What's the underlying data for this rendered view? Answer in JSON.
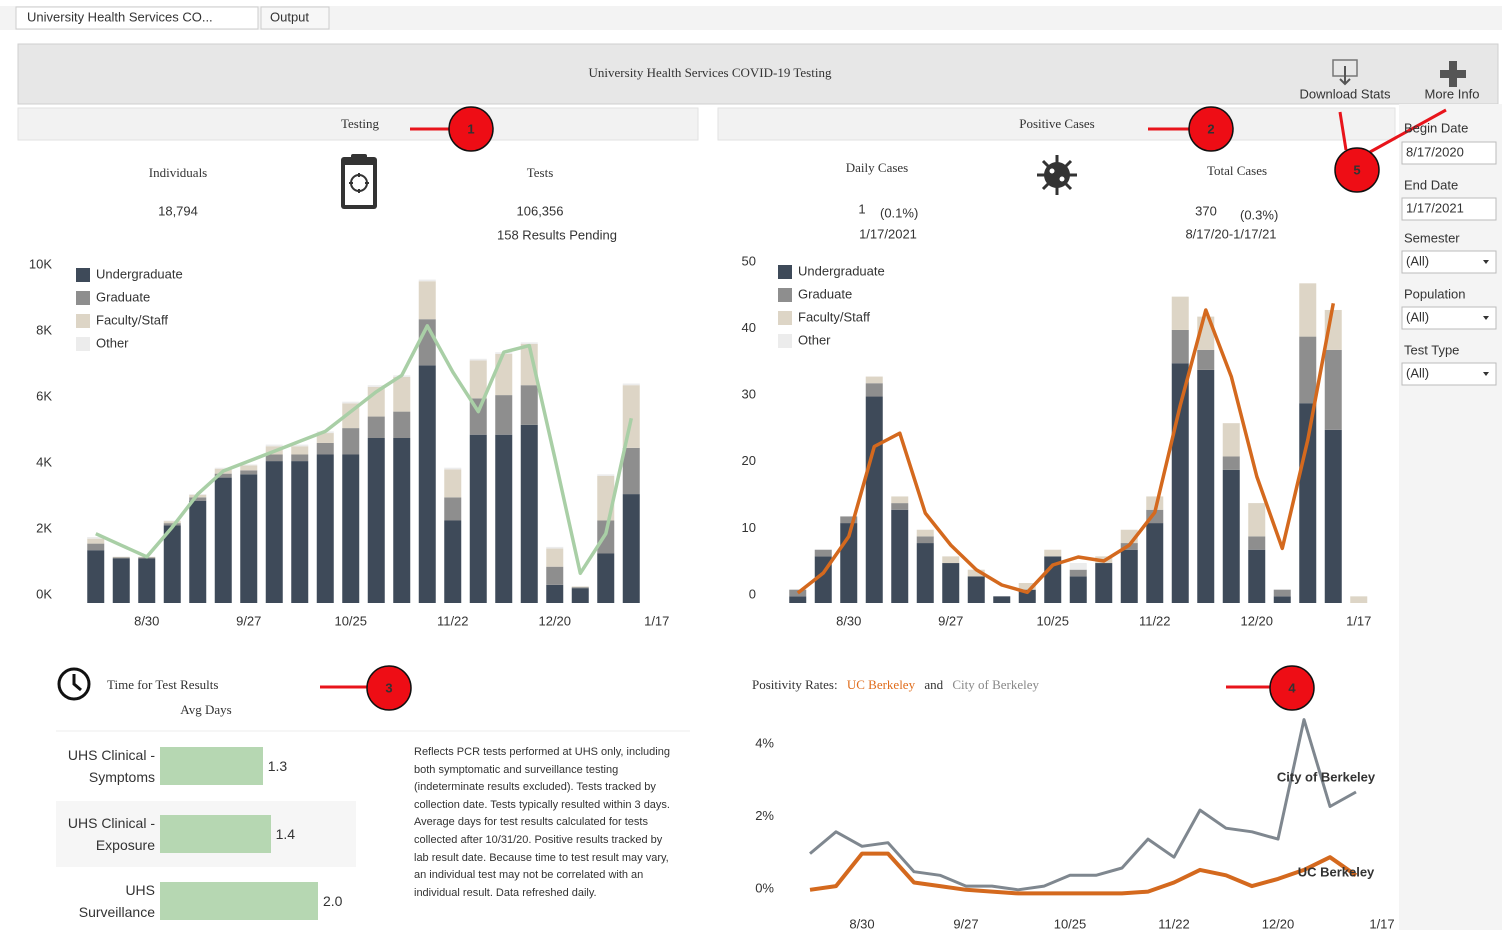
{
  "tabs": [
    "University Health Services CO...",
    "Output"
  ],
  "header": {
    "title": "University Health Services COVID-19 Testing",
    "buttons": [
      "Download Stats",
      "More Info"
    ]
  },
  "callouts": [
    "1",
    "2",
    "3",
    "4",
    "5"
  ],
  "testing": {
    "heading": "Testing",
    "kpis": [
      {
        "label": "Individuals",
        "value": "18,794"
      },
      {
        "label": "Tests",
        "value": "106,356",
        "note": "158 Results Pending"
      }
    ]
  },
  "cases": {
    "heading": "Positive Cases",
    "kpis": [
      {
        "label": "Daily Cases",
        "value": "1",
        "share": "(0.1%)",
        "date": "1/17/2021"
      },
      {
        "label": "Total Cases",
        "value": "370",
        "share": "(0.3%)",
        "date": "8/17/20-1/17/21"
      }
    ]
  },
  "results": {
    "title": "Time for Test Results",
    "subtitle": "Avg Days",
    "note": "Reflects PCR tests performed at UHS only, including both symptomatic and surveillance testing (indeterminate results excluded). Tests tracked by collection date. Tests typically resulted within 3 days. Average days for test results calculated for tests collected after 10/31/20. Positive results tracked by lab result date. Because time to test result may vary, an individual test may not be correlated with an individual result. Data refreshed daily."
  },
  "positivity": {
    "title_parts": [
      "Positivity Rates:",
      "UC Berkeley",
      "and",
      "City of Berkeley"
    ]
  },
  "filters": [
    {
      "label": "Begin Date",
      "value": "8/17/2020"
    },
    {
      "label": "End Date",
      "value": "1/17/2021"
    },
    {
      "label": "Semester",
      "value": "(All)"
    },
    {
      "label": "Population",
      "value": "(All)"
    },
    {
      "label": "Test Type",
      "value": "(All)"
    }
  ],
  "chart_data": [
    {
      "type": "bar",
      "stacked": true,
      "legend": "top-left",
      "categories": [
        null,
        null,
        "8/30",
        null,
        null,
        null,
        "9/27",
        null,
        null,
        null,
        "10/25",
        null,
        null,
        null,
        "11/22",
        null,
        null,
        null,
        "12/20",
        null,
        null,
        null,
        "1/17"
      ],
      "series": [
        {
          "name": "Undergraduate",
          "color": "#3e4a59",
          "values": [
            1600,
            1350,
            1350,
            2350,
            3100,
            3800,
            3900,
            4300,
            4300,
            4500,
            4500,
            5000,
            5000,
            7200,
            2500,
            5100,
            5100,
            5400,
            550,
            450,
            1500,
            3300,
            null
          ]
        },
        {
          "name": "Graduate",
          "color": "#8e8e8e",
          "values": [
            200,
            30,
            30,
            70,
            100,
            120,
            120,
            200,
            200,
            350,
            800,
            650,
            800,
            1400,
            700,
            1100,
            1200,
            1200,
            550,
            30,
            1000,
            1400,
            null
          ]
        },
        {
          "name": "Faculty/Staff",
          "color": "#ddd5c6",
          "values": [
            150,
            20,
            20,
            60,
            80,
            150,
            150,
            250,
            250,
            300,
            750,
            900,
            1050,
            1150,
            850,
            1150,
            1250,
            1250,
            550,
            20,
            1350,
            1900,
            null
          ]
        },
        {
          "name": "Other",
          "color": "#ececec",
          "values": [
            50,
            0,
            0,
            20,
            20,
            30,
            30,
            50,
            50,
            50,
            50,
            50,
            50,
            50,
            50,
            50,
            50,
            50,
            50,
            0,
            50,
            50,
            null
          ]
        }
      ],
      "line": {
        "color": "#a9cfa6",
        "values": [
          2100,
          1750,
          1400,
          2300,
          3300,
          4000,
          4300,
          4600,
          4900,
          5200,
          5800,
          6400,
          6900,
          8400,
          7000,
          5800,
          7600,
          7800,
          4400,
          900,
          2100,
          5600,
          null
        ]
      },
      "ylim": [
        0,
        10000
      ],
      "yticks": [
        {
          "value": 0,
          "label": "0K"
        },
        {
          "value": 2000,
          "label": "2K"
        },
        {
          "value": 4000,
          "label": "4K"
        },
        {
          "value": 6000,
          "label": "6K"
        },
        {
          "value": 8000,
          "label": "8K"
        },
        {
          "value": 10000,
          "label": "10K"
        }
      ]
    },
    {
      "type": "bar",
      "stacked": true,
      "legend": "top-left",
      "categories": [
        null,
        null,
        "8/30",
        null,
        null,
        null,
        "9/27",
        null,
        null,
        null,
        "10/25",
        null,
        null,
        null,
        "11/22",
        null,
        null,
        null,
        "12/20",
        null,
        null,
        null,
        "1/17"
      ],
      "series": [
        {
          "name": "Undergraduate",
          "color": "#3e4a59",
          "values": [
            1,
            7,
            12,
            31,
            14,
            9,
            6,
            4,
            1,
            2,
            7,
            4,
            6,
            8,
            12,
            36,
            35,
            20,
            8,
            1,
            30,
            26,
            0
          ]
        },
        {
          "name": "Graduate",
          "color": "#8e8e8e",
          "values": [
            1,
            1,
            1,
            2,
            1,
            1,
            0,
            0,
            0,
            0,
            0,
            1,
            0,
            1,
            2,
            5,
            3,
            2,
            2,
            1,
            10,
            12,
            0
          ]
        },
        {
          "name": "Faculty/Staff",
          "color": "#ddd5c6",
          "values": [
            0,
            0,
            0,
            1,
            1,
            1,
            1,
            1,
            0,
            1,
            1,
            0,
            1,
            2,
            2,
            5,
            5,
            5,
            5,
            0,
            8,
            6,
            1
          ]
        },
        {
          "name": "Other",
          "color": "#ececec",
          "values": [
            0,
            0,
            0,
            0,
            0,
            0,
            0,
            0,
            0,
            0,
            0,
            1,
            0,
            0,
            0,
            0,
            0,
            0,
            0,
            0,
            0,
            0,
            0
          ]
        }
      ],
      "line": {
        "color": "#d4691e",
        "values": [
          1.5,
          4.5,
          10,
          23.5,
          25.5,
          13.5,
          8.7,
          5,
          2.7,
          1.6,
          5.7,
          6.9,
          6.3,
          8.7,
          13.6,
          29.7,
          44,
          34,
          19,
          8.2,
          24.5,
          45,
          null
        ]
      },
      "ylim": [
        0,
        50
      ],
      "yticks": [
        0,
        10,
        20,
        30,
        40,
        50
      ]
    },
    {
      "type": "hbar",
      "categories": [
        "UHS Clinical - Symptoms",
        "UHS Clinical - Exposure",
        "UHS Surveillance"
      ],
      "values": [
        1.3,
        1.4,
        2.0
      ],
      "value_labels": [
        "1.3",
        "1.4",
        "2.0"
      ],
      "color": "#b6d7b2"
    },
    {
      "type": "line",
      "categories": [
        null,
        null,
        "8/30",
        null,
        null,
        null,
        "9/27",
        null,
        null,
        null,
        "10/25",
        null,
        null,
        null,
        "11/22",
        null,
        null,
        null,
        "12/20",
        null,
        null,
        null,
        "1/17"
      ],
      "series": [
        {
          "name": "City of Berkeley",
          "color": "#7f878f",
          "values": [
            1.2,
            1.8,
            1.4,
            1.5,
            0.7,
            0.6,
            0.3,
            0.3,
            0.2,
            0.3,
            0.6,
            0.6,
            0.8,
            1.6,
            1.1,
            2.4,
            1.9,
            1.8,
            1.6,
            4.9,
            2.5,
            2.9,
            null
          ]
        },
        {
          "name": "UC Berkeley",
          "color": "#d4691e",
          "values": [
            0.2,
            0.3,
            1.2,
            1.2,
            0.4,
            0.3,
            0.2,
            0.15,
            0.1,
            0.1,
            0.1,
            0.1,
            0.1,
            0.15,
            0.4,
            0.75,
            0.6,
            0.3,
            0.5,
            0.75,
            1.1,
            0.6,
            null
          ]
        }
      ],
      "ylim": [
        0,
        5
      ],
      "yticks": [
        {
          "value": 0,
          "label": "0%"
        },
        {
          "value": 2,
          "label": "2%"
        },
        {
          "value": 4,
          "label": "4%"
        }
      ]
    }
  ]
}
